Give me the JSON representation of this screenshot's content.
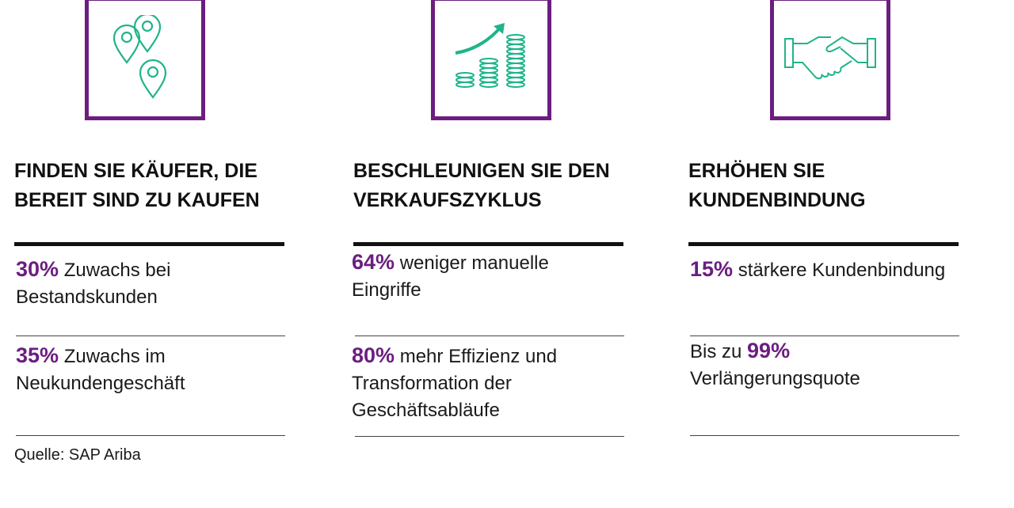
{
  "colors": {
    "accent": "#6b1e80",
    "icon": "#1fb48a",
    "text": "#111111"
  },
  "columns": [
    {
      "icon": "map-pins-icon",
      "heading": "FINDEN SIE KÄUFER, DIE BEREIT SIND ZU KAUFEN",
      "stats": [
        {
          "prefix": "",
          "pct": "30%",
          "text": " Zuwachs bei Bestandskunden"
        },
        {
          "prefix": "",
          "pct": "35%",
          "text": " Zuwachs im Neukundengeschäft"
        }
      ]
    },
    {
      "icon": "growth-coins-icon",
      "heading": "BESCHLEUNIGEN SIE DEN VERKAUFSZYKLUS",
      "stats": [
        {
          "prefix": "",
          "pct": "64%",
          "text": " weniger manuelle Eingriffe"
        },
        {
          "prefix": "",
          "pct": "80%",
          "text": " mehr Effizienz und Transformation der Geschäftsabläufe"
        }
      ]
    },
    {
      "icon": "handshake-icon",
      "heading": "ERHÖHEN SIE KUNDENBINDUNG",
      "stats": [
        {
          "prefix": "",
          "pct": "15%",
          "text": " stärkere Kundenbindung"
        },
        {
          "prefix": "Bis zu ",
          "pct": "99%",
          "text": " Verlängerungsquote"
        }
      ]
    }
  ],
  "source": "Quelle: SAP Ariba"
}
